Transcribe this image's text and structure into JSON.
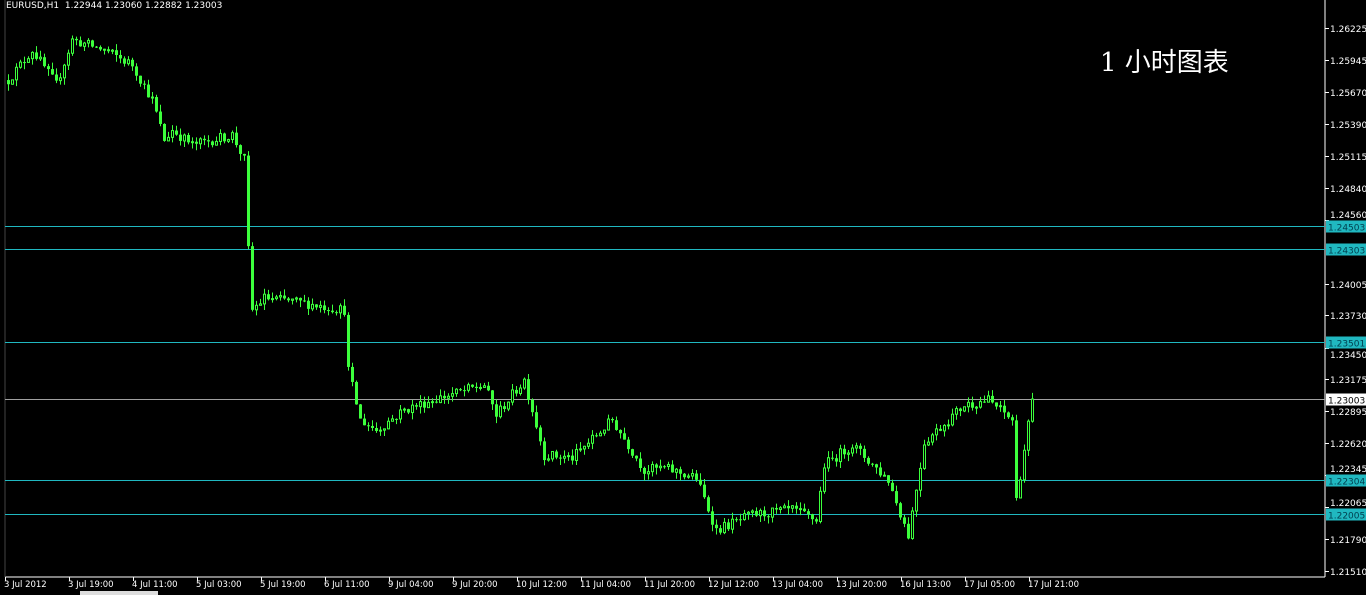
{
  "header": {
    "symbol": "EURUSD,H1",
    "ohlc": "1.22944 1.23060 1.22882 1.23003"
  },
  "annotation": "1 小时图表",
  "colors": {
    "background": "#000000",
    "candle": "#3cff3c",
    "hline": "#20b8c0",
    "axis": "#ffffff",
    "current_price_line": "#a0a0a0"
  },
  "chart_data": {
    "type": "candlestick",
    "title": "EURUSD,H1",
    "ylim": [
      1.2151,
      1.26225
    ],
    "y_ticks": [
      "1.26225",
      "1.25945",
      "1.25670",
      "1.25390",
      "1.25115",
      "1.24840",
      "1.24560",
      "1.24005",
      "1.23730",
      "1.23450",
      "1.23175",
      "1.22895",
      "1.22620",
      "1.22345",
      "1.22065",
      "1.21790",
      "1.21510"
    ],
    "x_ticks": [
      "3 Jul 2012",
      "3 Jul 19:00",
      "4 Jul 11:00",
      "5 Jul 03:00",
      "5 Jul 19:00",
      "6 Jul 11:00",
      "9 Jul 04:00",
      "9 Jul 20:00",
      "10 Jul 12:00",
      "11 Jul 04:00",
      "11 Jul 20:00",
      "12 Jul 12:00",
      "13 Jul 04:00",
      "13 Jul 20:00",
      "16 Jul 13:00",
      "17 Jul 05:00",
      "17 Jul 21:00"
    ],
    "bars_per_tick": 16,
    "price_path": [
      [
        0,
        1.25773
      ],
      [
        6,
        1.26034
      ],
      [
        12,
        1.2573
      ],
      [
        16,
        1.26121
      ],
      [
        24,
        1.26034
      ],
      [
        31,
        1.25904
      ],
      [
        36,
        1.256
      ],
      [
        39,
        1.25252
      ],
      [
        41,
        1.25339
      ],
      [
        46,
        1.25209
      ],
      [
        56,
        1.25296
      ],
      [
        59,
        1.25079
      ],
      [
        60,
        1.24297
      ],
      [
        61,
        1.23776
      ],
      [
        64,
        1.23881
      ],
      [
        74,
        1.23837
      ],
      [
        84,
        1.23776
      ],
      [
        85,
        1.23255
      ],
      [
        88,
        1.22821
      ],
      [
        92,
        1.22734
      ],
      [
        99,
        1.22908
      ],
      [
        106,
        1.22995
      ],
      [
        119,
        1.23125
      ],
      [
        122,
        1.22864
      ],
      [
        129,
        1.23169
      ],
      [
        134,
        1.22517
      ],
      [
        141,
        1.22491
      ],
      [
        151,
        1.22821
      ],
      [
        159,
        1.22387
      ],
      [
        164,
        1.22404
      ],
      [
        172,
        1.22318
      ],
      [
        177,
        1.21866
      ],
      [
        186,
        1.21996
      ],
      [
        196,
        1.2204
      ],
      [
        202,
        1.21953
      ],
      [
        204,
        1.2243
      ],
      [
        211,
        1.22604
      ],
      [
        220,
        1.223
      ],
      [
        225,
        1.21823
      ],
      [
        229,
        1.2263
      ],
      [
        239,
        1.22951
      ],
      [
        245,
        1.22995
      ],
      [
        251,
        1.22821
      ],
      [
        252,
        1.22127
      ],
      [
        256,
        1.23003
      ]
    ],
    "horizontal_lines": [
      "1.24503",
      "1.24303",
      "1.23501",
      "1.22304",
      "1.22005"
    ],
    "current_price": "1.23003",
    "grid": false
  }
}
